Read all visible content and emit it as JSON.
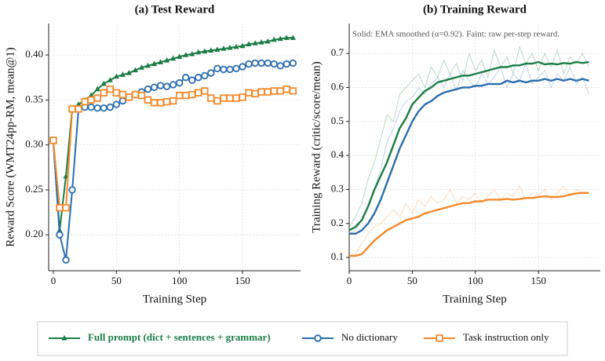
{
  "chart_data": [
    {
      "type": "line",
      "title": "(a) Test Reward",
      "xlabel": "Training Step",
      "ylabel": "Reward Score (WMT24pp-RM, mean@1)",
      "x": [
        0,
        5,
        10,
        15,
        20,
        25,
        30,
        35,
        40,
        45,
        50,
        55,
        60,
        65,
        70,
        75,
        80,
        85,
        90,
        95,
        100,
        105,
        110,
        115,
        120,
        125,
        130,
        135,
        140,
        145,
        150,
        155,
        160,
        165,
        170,
        175,
        180,
        185,
        190
      ],
      "xlim": [
        -3.7,
        196
      ],
      "xticks": [
        0,
        50,
        100,
        150
      ],
      "ylim": [
        0.16,
        0.435
      ],
      "yticks": [
        {
          "value": 0.2,
          "label": "0.20"
        },
        {
          "value": 0.25,
          "label": "0.25"
        },
        {
          "value": 0.3,
          "label": "0.30"
        },
        {
          "value": 0.35,
          "label": "0.35"
        },
        {
          "value": 0.4,
          "label": "0.40"
        }
      ],
      "grid": true,
      "series": [
        {
          "name": "Full prompt (dict + sentences + grammar)",
          "color": "#1b7d45",
          "marker": "triangle",
          "values": [
            0.305,
            0.205,
            0.265,
            0.34,
            0.345,
            0.35,
            0.355,
            0.362,
            0.368,
            0.372,
            0.376,
            0.378,
            0.38,
            0.383,
            0.386,
            0.388,
            0.39,
            0.392,
            0.394,
            0.396,
            0.398,
            0.4,
            0.401,
            0.403,
            0.404,
            0.405,
            0.406,
            0.407,
            0.408,
            0.409,
            0.41,
            0.412,
            0.413,
            0.414,
            0.415,
            0.417,
            0.418,
            0.419,
            0.419
          ]
        },
        {
          "name": "No dictionary",
          "color": "#2a6db0",
          "marker": "circle",
          "values": [
            0.305,
            0.2,
            0.172,
            0.25,
            0.34,
            0.342,
            0.342,
            0.341,
            0.341,
            0.342,
            0.345,
            0.349,
            0.353,
            0.356,
            0.359,
            0.362,
            0.364,
            0.366,
            0.365,
            0.367,
            0.369,
            0.375,
            0.372,
            0.375,
            0.377,
            0.38,
            0.385,
            0.384,
            0.384,
            0.385,
            0.387,
            0.39,
            0.391,
            0.391,
            0.391,
            0.39,
            0.388,
            0.39,
            0.391
          ]
        },
        {
          "name": "Task instruction only",
          "color": "#f5892a",
          "marker": "square",
          "values": [
            0.305,
            0.23,
            0.23,
            0.34,
            0.34,
            0.348,
            0.35,
            0.352,
            0.358,
            0.362,
            0.358,
            0.356,
            0.353,
            0.356,
            0.355,
            0.35,
            0.347,
            0.347,
            0.348,
            0.349,
            0.355,
            0.355,
            0.356,
            0.358,
            0.36,
            0.352,
            0.349,
            0.352,
            0.352,
            0.352,
            0.353,
            0.358,
            0.357,
            0.359,
            0.359,
            0.36,
            0.36,
            0.362,
            0.36
          ]
        }
      ]
    },
    {
      "type": "line",
      "title": "(b) Training Reward",
      "xlabel": "Training Step",
      "ylabel": "Training Reward (critic/score/mean)",
      "annotation": "Solid: EMA smoothed (α=0.92). Faint: raw per-step reward.",
      "x": [
        0,
        5,
        10,
        15,
        20,
        25,
        30,
        35,
        40,
        45,
        50,
        55,
        60,
        65,
        70,
        75,
        80,
        85,
        90,
        95,
        100,
        105,
        110,
        115,
        120,
        125,
        130,
        135,
        140,
        145,
        150,
        155,
        160,
        165,
        170,
        175,
        180,
        185,
        190
      ],
      "xlim": [
        0,
        199
      ],
      "xticks": [
        0,
        50,
        100,
        150
      ],
      "ylim": [
        0.061,
        0.788
      ],
      "yticks": [
        0.1,
        0.2,
        0.3,
        0.4,
        0.5,
        0.6,
        0.7
      ],
      "grid": true,
      "series": [
        {
          "color": "#1b7d45",
          "values": [
            0.18,
            0.19,
            0.21,
            0.25,
            0.3,
            0.34,
            0.38,
            0.43,
            0.48,
            0.51,
            0.55,
            0.57,
            0.59,
            0.6,
            0.615,
            0.62,
            0.625,
            0.63,
            0.635,
            0.635,
            0.64,
            0.645,
            0.65,
            0.655,
            0.66,
            0.66,
            0.665,
            0.665,
            0.67,
            0.67,
            0.675,
            0.668,
            0.67,
            0.668,
            0.672,
            0.67,
            0.675,
            0.672,
            0.675
          ]
        },
        {
          "color": "#2a6db0",
          "values": [
            0.17,
            0.17,
            0.18,
            0.2,
            0.23,
            0.27,
            0.32,
            0.37,
            0.42,
            0.46,
            0.5,
            0.53,
            0.55,
            0.56,
            0.575,
            0.585,
            0.59,
            0.595,
            0.6,
            0.6,
            0.605,
            0.605,
            0.61,
            0.61,
            0.61,
            0.62,
            0.615,
            0.62,
            0.615,
            0.62,
            0.62,
            0.625,
            0.62,
            0.625,
            0.62,
            0.625,
            0.62,
            0.625,
            0.62
          ]
        },
        {
          "color": "#f5892a",
          "values": [
            0.105,
            0.105,
            0.11,
            0.13,
            0.15,
            0.165,
            0.18,
            0.19,
            0.2,
            0.21,
            0.215,
            0.22,
            0.23,
            0.235,
            0.24,
            0.245,
            0.25,
            0.255,
            0.26,
            0.26,
            0.265,
            0.265,
            0.27,
            0.27,
            0.27,
            0.272,
            0.27,
            0.272,
            0.275,
            0.275,
            0.278,
            0.28,
            0.278,
            0.278,
            0.28,
            0.285,
            0.288,
            0.29,
            0.29
          ]
        }
      ],
      "raw_series": [
        {
          "color": "#1b7d45",
          "values": [
            0.19,
            0.22,
            0.26,
            0.33,
            0.38,
            0.45,
            0.52,
            0.5,
            0.58,
            0.6,
            0.62,
            0.64,
            0.6,
            0.66,
            0.63,
            0.68,
            0.64,
            0.67,
            0.62,
            0.7,
            0.65,
            0.68,
            0.63,
            0.71,
            0.66,
            0.69,
            0.64,
            0.72,
            0.67,
            0.7,
            0.65,
            0.7,
            0.66,
            0.71,
            0.64,
            0.69,
            0.67,
            0.7,
            0.66
          ]
        },
        {
          "color": "#2a6db0",
          "values": [
            0.17,
            0.18,
            0.21,
            0.25,
            0.3,
            0.36,
            0.44,
            0.48,
            0.53,
            0.56,
            0.57,
            0.6,
            0.58,
            0.61,
            0.63,
            0.6,
            0.64,
            0.59,
            0.65,
            0.62,
            0.6,
            0.64,
            0.61,
            0.63,
            0.66,
            0.6,
            0.64,
            0.62,
            0.67,
            0.61,
            0.63,
            0.65,
            0.6,
            0.64,
            0.62,
            0.66,
            0.61,
            0.63,
            0.58
          ]
        },
        {
          "color": "#f5892a",
          "values": [
            0.1,
            0.11,
            0.14,
            0.17,
            0.19,
            0.2,
            0.22,
            0.24,
            0.22,
            0.26,
            0.23,
            0.27,
            0.25,
            0.28,
            0.26,
            0.27,
            0.3,
            0.26,
            0.28,
            0.27,
            0.29,
            0.26,
            0.28,
            0.3,
            0.27,
            0.29,
            0.28,
            0.31,
            0.27,
            0.29,
            0.28,
            0.3,
            0.27,
            0.29,
            0.31,
            0.28,
            0.3,
            0.29,
            0.29
          ]
        }
      ]
    }
  ]
}
